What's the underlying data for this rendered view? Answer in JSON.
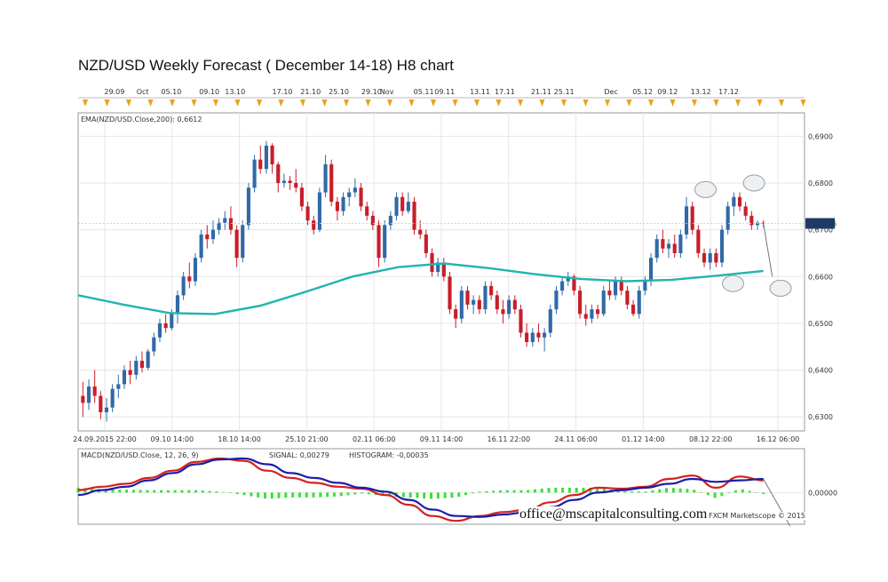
{
  "title": "NZD/USD Weekly Forecast ( December 14-18) H8 chart",
  "footer": {
    "email": "office@mscapitalconsulting.com",
    "credit": "FXCM Marketscope © 2015"
  },
  "colors": {
    "bull": "#2f6aa8",
    "bear": "#c81e2a",
    "ema": "#1fb5ad",
    "macd": "#d42020",
    "signal": "#1c1ca8",
    "histogram": "#39e03a",
    "grid": "#e6e6e6",
    "event_marker": "#e8a317"
  },
  "chart_data": [
    {
      "type": "candlestick",
      "indicator_label": "EMA(NZD/USD.Close,200): 0,6612",
      "last_price_label": "0,67136",
      "ylim": [
        0.627,
        0.695
      ],
      "y_ticks": [
        "0,6900",
        "0,6800",
        "0,6700",
        "0,6600",
        "0,6500",
        "0,6400",
        "0,6300"
      ],
      "y_tick_values": [
        0.69,
        0.68,
        0.67,
        0.66,
        0.65,
        0.64,
        0.63
      ],
      "top_axis_labels": [
        "29.09",
        "Oct",
        "05.10",
        "09.10",
        "13.10",
        "17.10",
        "21.10",
        "25.10",
        "29.10",
        "Nov",
        "05.11",
        "09.11",
        "13.11",
        "17.11",
        "21.11",
        "25.11",
        "Dec",
        "05.12",
        "09.12",
        "13.12",
        "17.12"
      ],
      "top_axis_positions": [
        0.0714,
        0.1269,
        0.1831,
        0.2579,
        0.3087,
        0.4016,
        0.4571,
        0.5127,
        0.5769,
        0.6071,
        0.6796,
        0.7208,
        0.7903,
        0.839,
        0.9105,
        0.9556,
        1.0481,
        1.1101,
        1.1594,
        1.2247,
        1.2793
      ],
      "bottom_axis_labels": [
        "24.09.2015 22:00",
        "09.10 14:00",
        "18.10 14:00",
        "25.10 21:00",
        "02.11 06:00",
        "09.11 14:00",
        "16.11 22:00",
        "24.11 06:00",
        "01.12 14:00",
        "08.12 22:00",
        "16.12 06:00"
      ],
      "series": [
        {
          "name": "NZD/USD",
          "ohlc": [
            [
              0.6345,
              0.6375,
              0.63,
              0.633
            ],
            [
              0.633,
              0.638,
              0.6315,
              0.6365
            ],
            [
              0.6365,
              0.64,
              0.633,
              0.6345
            ],
            [
              0.6345,
              0.6355,
              0.6295,
              0.631
            ],
            [
              0.631,
              0.634,
              0.629,
              0.632
            ],
            [
              0.632,
              0.637,
              0.631,
              0.636
            ],
            [
              0.636,
              0.639,
              0.634,
              0.637
            ],
            [
              0.637,
              0.641,
              0.636,
              0.64
            ],
            [
              0.64,
              0.642,
              0.637,
              0.639
            ],
            [
              0.639,
              0.643,
              0.638,
              0.642
            ],
            [
              0.642,
              0.644,
              0.6395,
              0.6405
            ],
            [
              0.6405,
              0.6445,
              0.64,
              0.644
            ],
            [
              0.644,
              0.648,
              0.643,
              0.647
            ],
            [
              0.647,
              0.651,
              0.646,
              0.65
            ],
            [
              0.65,
              0.652,
              0.648,
              0.649
            ],
            [
              0.649,
              0.653,
              0.6485,
              0.652
            ],
            [
              0.652,
              0.657,
              0.65,
              0.656
            ],
            [
              0.656,
              0.661,
              0.655,
              0.66
            ],
            [
              0.66,
              0.663,
              0.6575,
              0.659
            ],
            [
              0.659,
              0.665,
              0.658,
              0.664
            ],
            [
              0.664,
              0.67,
              0.663,
              0.669
            ],
            [
              0.669,
              0.671,
              0.666,
              0.668
            ],
            [
              0.668,
              0.672,
              0.667,
              0.67
            ],
            [
              0.67,
              0.6725,
              0.669,
              0.6715
            ],
            [
              0.6715,
              0.674,
              0.67,
              0.6725
            ],
            [
              0.6725,
              0.675,
              0.669,
              0.67
            ],
            [
              0.67,
              0.671,
              0.662,
              0.664
            ],
            [
              0.664,
              0.672,
              0.663,
              0.671
            ],
            [
              0.671,
              0.68,
              0.67,
              0.679
            ],
            [
              0.679,
              0.686,
              0.678,
              0.685
            ],
            [
              0.685,
              0.688,
              0.682,
              0.683
            ],
            [
              0.683,
              0.689,
              0.682,
              0.688
            ],
            [
              0.688,
              0.6885,
              0.682,
              0.684
            ],
            [
              0.684,
              0.6845,
              0.678,
              0.68
            ],
            [
              0.68,
              0.682,
              0.679,
              0.6805
            ],
            [
              0.6805,
              0.6815,
              0.6785,
              0.68
            ],
            [
              0.68,
              0.683,
              0.678,
              0.679
            ],
            [
              0.679,
              0.68,
              0.674,
              0.675
            ],
            [
              0.675,
              0.676,
              0.671,
              0.672
            ],
            [
              0.672,
              0.673,
              0.669,
              0.67
            ],
            [
              0.67,
              0.679,
              0.6695,
              0.678
            ],
            [
              0.678,
              0.686,
              0.677,
              0.684
            ],
            [
              0.684,
              0.685,
              0.675,
              0.676
            ],
            [
              0.676,
              0.677,
              0.672,
              0.674
            ],
            [
              0.674,
              0.678,
              0.673,
              0.677
            ],
            [
              0.677,
              0.679,
              0.675,
              0.678
            ],
            [
              0.678,
              0.681,
              0.677,
              0.679
            ],
            [
              0.679,
              0.68,
              0.674,
              0.675
            ],
            [
              0.675,
              0.676,
              0.672,
              0.673
            ],
            [
              0.673,
              0.674,
              0.67,
              0.671
            ],
            [
              0.671,
              0.672,
              0.662,
              0.664
            ],
            [
              0.664,
              0.672,
              0.663,
              0.671
            ],
            [
              0.671,
              0.674,
              0.67,
              0.673
            ],
            [
              0.673,
              0.678,
              0.672,
              0.677
            ],
            [
              0.677,
              0.678,
              0.673,
              0.674
            ],
            [
              0.674,
              0.678,
              0.6735,
              0.676
            ],
            [
              0.676,
              0.677,
              0.669,
              0.67
            ],
            [
              0.67,
              0.672,
              0.668,
              0.669
            ],
            [
              0.669,
              0.67,
              0.664,
              0.665
            ],
            [
              0.665,
              0.666,
              0.66,
              0.661
            ],
            [
              0.661,
              0.664,
              0.66,
              0.663
            ],
            [
              0.663,
              0.664,
              0.659,
              0.66
            ],
            [
              0.66,
              0.661,
              0.652,
              0.653
            ],
            [
              0.653,
              0.654,
              0.649,
              0.651
            ],
            [
              0.651,
              0.658,
              0.65,
              0.657
            ],
            [
              0.657,
              0.658,
              0.653,
              0.654
            ],
            [
              0.654,
              0.656,
              0.652,
              0.655
            ],
            [
              0.655,
              0.656,
              0.652,
              0.653
            ],
            [
              0.653,
              0.659,
              0.652,
              0.658
            ],
            [
              0.658,
              0.659,
              0.655,
              0.656
            ],
            [
              0.656,
              0.657,
              0.652,
              0.653
            ],
            [
              0.653,
              0.655,
              0.65,
              0.652
            ],
            [
              0.652,
              0.656,
              0.651,
              0.655
            ],
            [
              0.655,
              0.656,
              0.652,
              0.653
            ],
            [
              0.653,
              0.654,
              0.647,
              0.648
            ],
            [
              0.648,
              0.65,
              0.645,
              0.646
            ],
            [
              0.646,
              0.649,
              0.645,
              0.648
            ],
            [
              0.648,
              0.65,
              0.646,
              0.647
            ],
            [
              0.647,
              0.649,
              0.644,
              0.648
            ],
            [
              0.648,
              0.654,
              0.647,
              0.653
            ],
            [
              0.653,
              0.658,
              0.652,
              0.657
            ],
            [
              0.657,
              0.66,
              0.656,
              0.659
            ],
            [
              0.659,
              0.661,
              0.658,
              0.66
            ],
            [
              0.66,
              0.6605,
              0.656,
              0.657
            ],
            [
              0.657,
              0.658,
              0.651,
              0.652
            ],
            [
              0.652,
              0.654,
              0.6495,
              0.651
            ],
            [
              0.651,
              0.654,
              0.65,
              0.653
            ],
            [
              0.653,
              0.654,
              0.651,
              0.652
            ],
            [
              0.652,
              0.658,
              0.6515,
              0.657
            ],
            [
              0.657,
              0.659,
              0.655,
              0.656
            ],
            [
              0.656,
              0.66,
              0.655,
              0.659
            ],
            [
              0.659,
              0.66,
              0.656,
              0.657
            ],
            [
              0.657,
              0.658,
              0.653,
              0.654
            ],
            [
              0.654,
              0.655,
              0.6515,
              0.652
            ],
            [
              0.652,
              0.658,
              0.651,
              0.657
            ],
            [
              0.657,
              0.66,
              0.656,
              0.659
            ],
            [
              0.659,
              0.665,
              0.658,
              0.664
            ],
            [
              0.664,
              0.669,
              0.663,
              0.668
            ],
            [
              0.668,
              0.67,
              0.665,
              0.666
            ],
            [
              0.666,
              0.668,
              0.664,
              0.667
            ],
            [
              0.667,
              0.669,
              0.664,
              0.665
            ],
            [
              0.665,
              0.67,
              0.664,
              0.669
            ],
            [
              0.669,
              0.677,
              0.668,
              0.675
            ],
            [
              0.675,
              0.676,
              0.669,
              0.67
            ],
            [
              0.67,
              0.671,
              0.664,
              0.665
            ],
            [
              0.665,
              0.666,
              0.662,
              0.663
            ],
            [
              0.663,
              0.666,
              0.6615,
              0.665
            ],
            [
              0.665,
              0.666,
              0.662,
              0.663
            ],
            [
              0.663,
              0.671,
              0.662,
              0.67
            ],
            [
              0.67,
              0.676,
              0.669,
              0.675
            ],
            [
              0.675,
              0.678,
              0.673,
              0.677
            ],
            [
              0.677,
              0.678,
              0.674,
              0.675
            ],
            [
              0.675,
              0.676,
              0.672,
              0.673
            ],
            [
              0.673,
              0.674,
              0.67,
              0.671
            ],
            [
              0.671,
              0.672,
              0.67,
              0.6715
            ],
            [
              0.6715,
              0.672,
              0.6705,
              0.6714
            ]
          ]
        },
        {
          "name": "EMA(NZD/USD.Close,200)",
          "values": [
            0.656,
            0.654,
            0.6522,
            0.652,
            0.6538,
            0.6568,
            0.66,
            0.662,
            0.6628,
            0.6618,
            0.6605,
            0.6595,
            0.659,
            0.6593,
            0.6602,
            0.6612
          ]
        }
      ],
      "projection": [
        0.6714,
        0.66
      ],
      "annotations": [
        {
          "type": "ellipse",
          "x": 0.8637,
          "y": 0.6786
        },
        {
          "type": "ellipse",
          "x": 0.9305,
          "y": 0.68
        },
        {
          "type": "ellipse",
          "x": 0.9016,
          "y": 0.6585
        },
        {
          "type": "ellipse",
          "x": 0.967,
          "y": 0.6575
        }
      ]
    },
    {
      "type": "macd",
      "indicator_label": "MACD(NZD/USD.Close, 12, 26, 9)",
      "signal_label": "SIGNAL: 0,00279",
      "histogram_label": "HISTOGRAM: -0,00035",
      "y_tick_label": "0,00000",
      "ylim": [
        -0.0065,
        0.009
      ],
      "series": [
        {
          "name": "MACD",
          "values": [
            0.0005,
            0.0012,
            0.0018,
            0.003,
            0.0045,
            0.0063,
            0.007,
            0.0065,
            0.0045,
            0.003,
            0.002,
            0.0012,
            0.0008,
            -0.0005,
            -0.0025,
            -0.0048,
            -0.0058,
            -0.0048,
            -0.004,
            -0.0035,
            -0.002,
            -0.0005,
            0.001,
            0.0008,
            0.0012,
            0.0028,
            0.0035,
            0.001,
            0.0033,
            0.0025
          ]
        },
        {
          "name": "SIGNAL",
          "values": [
            -0.0005,
            0.0005,
            0.0012,
            0.0025,
            0.004,
            0.0058,
            0.0068,
            0.007,
            0.0058,
            0.004,
            0.003,
            0.002,
            0.001,
            0.0002,
            -0.0015,
            -0.0035,
            -0.0048,
            -0.005,
            -0.0045,
            -0.004,
            -0.003,
            -0.0015,
            0.0,
            0.0005,
            0.001,
            0.0018,
            0.0028,
            0.0022,
            0.0025,
            0.0028
          ]
        },
        {
          "name": "HISTOGRAM",
          "values": [
            0.001,
            0.0007,
            0.0006,
            0.0005,
            0.0005,
            0.0005,
            0.0002,
            -0.0005,
            -0.0013,
            -0.001,
            -0.001,
            -0.0008,
            -0.0002,
            -0.0007,
            -0.001,
            -0.0013,
            -0.001,
            0.0002,
            0.0005,
            0.0005,
            0.001,
            0.001,
            0.001,
            0.0003,
            0.0002,
            0.001,
            0.0007,
            -0.0012,
            0.0008,
            -0.0003
          ]
        }
      ]
    }
  ]
}
